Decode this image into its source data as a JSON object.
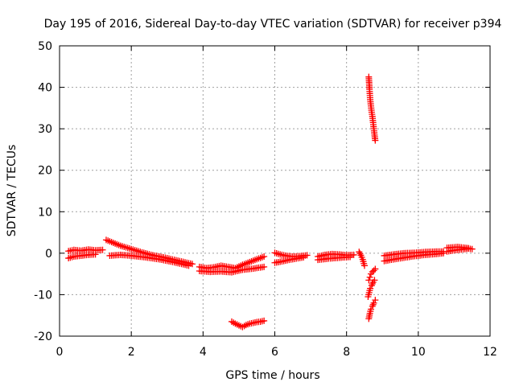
{
  "chart_data": {
    "type": "scatter",
    "title": "Day 195 of 2016, Sidereal Day-to-day VTEC variation (SDTVAR) for receiver p394",
    "xlabel": "GPS time / hours",
    "ylabel": "SDTVAR / TECUs",
    "xlim": [
      0,
      12
    ],
    "ylim": [
      -20,
      50
    ],
    "xticks": [
      "0",
      "2",
      "4",
      "6",
      "8",
      "10",
      "12"
    ],
    "yticks": [
      "-20",
      "-10",
      "0",
      "10",
      "20",
      "30",
      "40",
      "50"
    ],
    "grid": true,
    "marker": "plus",
    "marker_color": "#ff0000",
    "series": [
      {
        "x": [
          0.25,
          0.4,
          0.6,
          0.8,
          1.0,
          1.2
        ],
        "y": [
          0.5,
          0.8,
          0.6,
          0.9,
          0.7,
          0.8
        ]
      },
      {
        "x": [
          0.25,
          0.4,
          0.6,
          0.8,
          1.0
        ],
        "y": [
          -1.2,
          -0.8,
          -0.6,
          -0.4,
          -0.3
        ]
      },
      {
        "x": [
          1.3,
          1.5,
          1.7,
          2.0,
          2.3,
          2.6,
          2.9,
          3.2,
          3.5,
          3.7
        ],
        "y": [
          3.2,
          2.5,
          1.8,
          1.0,
          0.2,
          -0.5,
          -1.0,
          -1.6,
          -2.2,
          -2.6
        ]
      },
      {
        "x": [
          1.4,
          1.7,
          2.0,
          2.4,
          2.8,
          3.2,
          3.6
        ],
        "y": [
          -0.6,
          -0.4,
          -0.6,
          -1.0,
          -1.5,
          -2.2,
          -3.0
        ]
      },
      {
        "x": [
          3.9,
          4.1,
          4.3,
          4.5,
          4.7,
          4.9,
          5.1,
          5.4,
          5.7
        ],
        "y": [
          -3.3,
          -3.6,
          -3.4,
          -3.0,
          -3.3,
          -3.6,
          -2.8,
          -1.8,
          -0.8
        ]
      },
      {
        "x": [
          3.9,
          4.2,
          4.5,
          4.8,
          5.1,
          5.4,
          5.7
        ],
        "y": [
          -4.3,
          -4.5,
          -4.4,
          -4.6,
          -4.0,
          -3.7,
          -3.3
        ]
      },
      {
        "x": [
          4.8,
          4.9,
          5.0,
          5.1,
          5.2,
          5.3,
          5.4,
          5.5,
          5.6,
          5.7
        ],
        "y": [
          -16.5,
          -17.0,
          -17.4,
          -17.8,
          -17.3,
          -17.0,
          -16.8,
          -16.6,
          -16.5,
          -16.3
        ]
      },
      {
        "x": [
          6.0,
          6.15,
          6.3,
          6.5,
          6.7,
          6.9
        ],
        "y": [
          0.1,
          -0.3,
          -0.6,
          -0.8,
          -0.7,
          -0.5
        ]
      },
      {
        "x": [
          6.0,
          6.2,
          6.4,
          6.6,
          6.8
        ],
        "y": [
          -2.3,
          -2.0,
          -1.6,
          -1.3,
          -1.0
        ]
      },
      {
        "x": [
          7.2,
          7.4,
          7.6,
          7.8,
          8.0,
          8.2
        ],
        "y": [
          -0.8,
          -0.4,
          -0.2,
          -0.3,
          -0.5,
          -0.4
        ]
      },
      {
        "x": [
          7.2,
          7.5,
          7.8,
          8.1
        ],
        "y": [
          -1.6,
          -1.3,
          -1.1,
          -0.9
        ]
      },
      {
        "x": [
          8.35,
          8.4,
          8.45,
          8.5
        ],
        "y": [
          0.3,
          -0.5,
          -1.5,
          -3.0
        ]
      },
      {
        "x": [
          8.62,
          8.64,
          8.66,
          8.68,
          8.7,
          8.72,
          8.74,
          8.76,
          8.78,
          8.8
        ],
        "y": [
          42.5,
          39.5,
          37.0,
          35.5,
          34.0,
          33.0,
          31.5,
          30.0,
          28.5,
          27.2
        ]
      },
      {
        "x": [
          8.62,
          8.65,
          8.68,
          8.72,
          8.76,
          8.8
        ],
        "y": [
          -6.5,
          -5.8,
          -5.0,
          -4.5,
          -4.2,
          -3.8
        ]
      },
      {
        "x": [
          8.6,
          8.63,
          8.66,
          8.7,
          8.74,
          8.78
        ],
        "y": [
          -10.5,
          -9.5,
          -8.5,
          -7.8,
          -7.0,
          -6.5
        ]
      },
      {
        "x": [
          8.62,
          8.65,
          8.68,
          8.72,
          8.76,
          8.8
        ],
        "y": [
          -15.8,
          -14.5,
          -13.5,
          -12.8,
          -12.0,
          -11.3
        ]
      },
      {
        "x": [
          9.05,
          9.3,
          9.6,
          9.9,
          10.2,
          10.5,
          10.7
        ],
        "y": [
          -0.6,
          -0.3,
          0.0,
          0.1,
          0.3,
          0.4,
          0.4
        ]
      },
      {
        "x": [
          9.05,
          9.3,
          9.6,
          9.9,
          10.2,
          10.5,
          10.7
        ],
        "y": [
          -1.9,
          -1.5,
          -1.1,
          -0.7,
          -0.4,
          -0.2,
          0.0
        ]
      },
      {
        "x": [
          10.8,
          11.0,
          11.2,
          11.4,
          11.5
        ],
        "y": [
          0.4,
          0.7,
          0.9,
          1.1,
          1.0
        ]
      },
      {
        "x": [
          10.8,
          11.1,
          11.4
        ],
        "y": [
          1.3,
          1.5,
          1.2
        ]
      }
    ]
  }
}
